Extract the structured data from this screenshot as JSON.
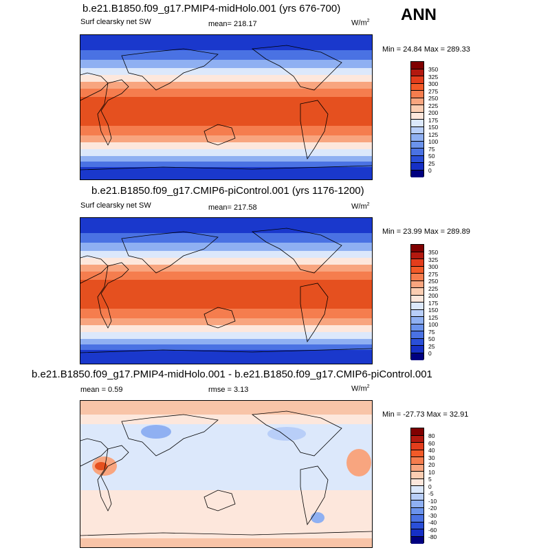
{
  "season": "ANN",
  "units_base": "W/m",
  "units_exp": "2",
  "panels": [
    {
      "title": "b.e21.B1850.f09_g17.PMIP4-midHolo.001 (yrs 676-700)",
      "left_label": "Surf clearsky net SW",
      "mean_label": "mean= 218.17",
      "minmax": "Min =  24.84 Max = 289.33",
      "colorbar_labels": [
        "350",
        "325",
        "300",
        "275",
        "250",
        "225",
        "200",
        "175",
        "150",
        "125",
        "100",
        "75",
        "50",
        "25",
        "0"
      ]
    },
    {
      "title": "b.e21.B1850.f09_g17.CMIP6-piControl.001 (yrs 1176-1200)",
      "left_label": "Surf clearsky net SW",
      "mean_label": "mean= 217.58",
      "minmax": "Min =  23.99 Max = 289.89",
      "colorbar_labels": [
        "350",
        "325",
        "300",
        "275",
        "250",
        "225",
        "200",
        "175",
        "150",
        "125",
        "100",
        "75",
        "50",
        "25",
        "0"
      ]
    },
    {
      "title": "b.e21.B1850.f09_g17.PMIP4-midHolo.001 - b.e21.B1850.f09_g17.CMIP6-piControl.001",
      "left_label": "mean =   0.59",
      "mean_label": "rmse =   3.13",
      "minmax": "Min = -27.73 Max =  32.91",
      "colorbar_labels": [
        "80",
        "60",
        "40",
        "30",
        "20",
        "10",
        "5",
        "0",
        "-5",
        "-10",
        "-20",
        "-30",
        "-40",
        "-60",
        "-80"
      ]
    }
  ],
  "colors": {
    "abs_scale": [
      "#800000",
      "#b3190f",
      "#e33d1c",
      "#f25a28",
      "#f57d4e",
      "#f8a57f",
      "#fbcdb2",
      "#fde7dc",
      "#dce8fb",
      "#b8cef8",
      "#8fb0f2",
      "#6b93ec",
      "#4a72e3",
      "#2a4fd8",
      "#1630c6",
      "#000080"
    ],
    "diff_scale": [
      "#800000",
      "#b3190f",
      "#e33d1c",
      "#f25a28",
      "#f57d4e",
      "#f8a57f",
      "#fbcdb2",
      "#fde7dc",
      "#dce8fb",
      "#b8cef8",
      "#8fb0f2",
      "#6b93ec",
      "#4a72e3",
      "#2a4fd8",
      "#1630c6",
      "#000080"
    ]
  }
}
